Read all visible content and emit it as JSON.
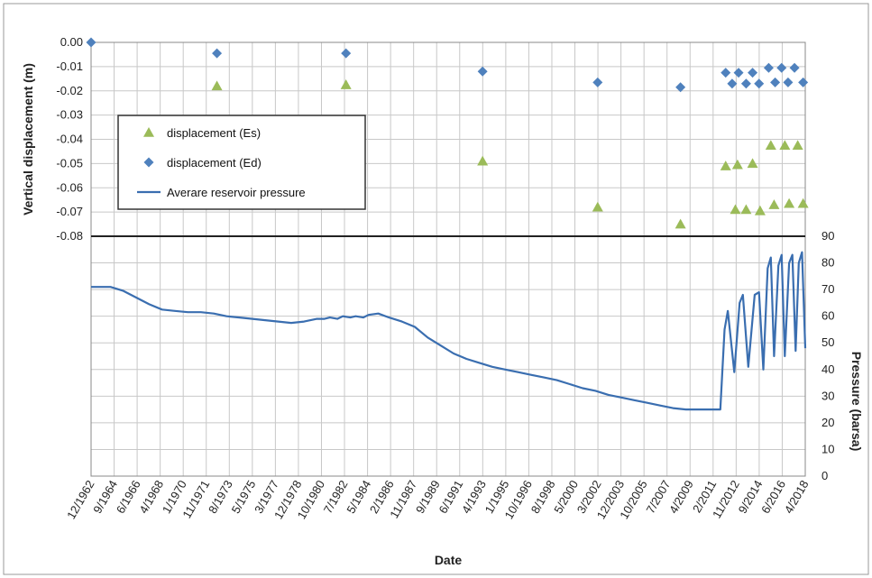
{
  "chart_data": {
    "type": "scatter+line",
    "xlabel": "Date",
    "top_panel": {
      "ylabel": "Vertical displacement (m)",
      "ylim": [
        -0.08,
        0.0
      ],
      "yticks": [
        "0.00",
        "-0.01",
        "-0.02",
        "-0.03",
        "-0.04",
        "-0.05",
        "-0.06",
        "-0.07",
        "-0.08"
      ],
      "series": [
        {
          "name": "displacement (Es)",
          "marker": "triangle",
          "color": "#9BBB59",
          "points": [
            {
              "x": "1972-09",
              "y": -0.018
            },
            {
              "x": "1982-09",
              "y": -0.0175
            },
            {
              "x": "1993-04",
              "y": -0.049
            },
            {
              "x": "2002-03",
              "y": -0.068
            },
            {
              "x": "2008-08",
              "y": -0.075
            },
            {
              "x": "2012-02",
              "y": -0.051
            },
            {
              "x": "2012-11",
              "y": -0.069
            },
            {
              "x": "2013-01",
              "y": -0.0505
            },
            {
              "x": "2013-09",
              "y": -0.069
            },
            {
              "x": "2014-03",
              "y": -0.05
            },
            {
              "x": "2014-10",
              "y": -0.0695
            },
            {
              "x": "2015-08",
              "y": -0.0425
            },
            {
              "x": "2015-11",
              "y": -0.067
            },
            {
              "x": "2016-09",
              "y": -0.0425
            },
            {
              "x": "2017-01",
              "y": -0.0665
            },
            {
              "x": "2017-09",
              "y": -0.0425
            },
            {
              "x": "2018-02",
              "y": -0.0665
            }
          ]
        },
        {
          "name": "displacement (Ed)",
          "marker": "diamond",
          "color": "#4F81BD",
          "points": [
            {
              "x": "1962-12",
              "y": 0.0
            },
            {
              "x": "1972-09",
              "y": -0.0045
            },
            {
              "x": "1982-09",
              "y": -0.0045
            },
            {
              "x": "1993-04",
              "y": -0.012
            },
            {
              "x": "2002-03",
              "y": -0.0165
            },
            {
              "x": "2008-08",
              "y": -0.0185
            },
            {
              "x": "2012-02",
              "y": -0.0125
            },
            {
              "x": "2012-08",
              "y": -0.017
            },
            {
              "x": "2013-02",
              "y": -0.0125
            },
            {
              "x": "2013-09",
              "y": -0.017
            },
            {
              "x": "2014-03",
              "y": -0.0125
            },
            {
              "x": "2014-09",
              "y": -0.017
            },
            {
              "x": "2015-06",
              "y": -0.0105
            },
            {
              "x": "2015-12",
              "y": -0.0165
            },
            {
              "x": "2016-06",
              "y": -0.0105
            },
            {
              "x": "2016-12",
              "y": -0.0165
            },
            {
              "x": "2017-06",
              "y": -0.0105
            },
            {
              "x": "2018-02",
              "y": -0.0165
            }
          ]
        }
      ]
    },
    "bottom_panel": {
      "ylabel": "Pressure (barsa)",
      "ylim": [
        0,
        90
      ],
      "yticks": [
        "0",
        "10",
        "20",
        "30",
        "40",
        "50",
        "60",
        "70",
        "80",
        "90"
      ],
      "series": [
        {
          "name": "Averare reservoir pressure",
          "color": "#3A6EB0",
          "points": [
            {
              "x": "1962-12",
              "y": 71.0
            },
            {
              "x": "1963-06",
              "y": 71.0
            },
            {
              "x": "1964-06",
              "y": 71.0
            },
            {
              "x": "1965-06",
              "y": 69.5
            },
            {
              "x": "1966-06",
              "y": 67.0
            },
            {
              "x": "1967-06",
              "y": 64.5
            },
            {
              "x": "1968-06",
              "y": 62.5
            },
            {
              "x": "1969-06",
              "y": 62.0
            },
            {
              "x": "1970-06",
              "y": 61.5
            },
            {
              "x": "1971-06",
              "y": 61.5
            },
            {
              "x": "1972-06",
              "y": 61.0
            },
            {
              "x": "1973-06",
              "y": 60.0
            },
            {
              "x": "1974-06",
              "y": 59.5
            },
            {
              "x": "1975-06",
              "y": 59.0
            },
            {
              "x": "1976-06",
              "y": 58.5
            },
            {
              "x": "1977-06",
              "y": 58.0
            },
            {
              "x": "1978-06",
              "y": 57.5
            },
            {
              "x": "1979-06",
              "y": 58.0
            },
            {
              "x": "1980-06",
              "y": 59.0
            },
            {
              "x": "1981-01",
              "y": 59.0
            },
            {
              "x": "1981-06",
              "y": 59.5
            },
            {
              "x": "1982-01",
              "y": 59.0
            },
            {
              "x": "1982-06",
              "y": 60.0
            },
            {
              "x": "1983-01",
              "y": 59.5
            },
            {
              "x": "1983-06",
              "y": 60.0
            },
            {
              "x": "1984-01",
              "y": 59.5
            },
            {
              "x": "1984-06",
              "y": 60.5
            },
            {
              "x": "1985-03",
              "y": 61.0
            },
            {
              "x": "1986-01",
              "y": 59.5
            },
            {
              "x": "1987-01",
              "y": 58.0
            },
            {
              "x": "1988-01",
              "y": 56.0
            },
            {
              "x": "1989-01",
              "y": 52.0
            },
            {
              "x": "1990-01",
              "y": 49.0
            },
            {
              "x": "1991-01",
              "y": 46.0
            },
            {
              "x": "1992-01",
              "y": 44.0
            },
            {
              "x": "1993-01",
              "y": 42.5
            },
            {
              "x": "1994-01",
              "y": 41.0
            },
            {
              "x": "1995-01",
              "y": 40.0
            },
            {
              "x": "1996-01",
              "y": 39.0
            },
            {
              "x": "1997-01",
              "y": 38.0
            },
            {
              "x": "1998-01",
              "y": 37.0
            },
            {
              "x": "1999-01",
              "y": 36.0
            },
            {
              "x": "2000-01",
              "y": 34.5
            },
            {
              "x": "2001-01",
              "y": 33.0
            },
            {
              "x": "2002-01",
              "y": 32.0
            },
            {
              "x": "2003-01",
              "y": 30.5
            },
            {
              "x": "2004-01",
              "y": 29.5
            },
            {
              "x": "2005-01",
              "y": 28.5
            },
            {
              "x": "2006-01",
              "y": 27.5
            },
            {
              "x": "2007-01",
              "y": 26.5
            },
            {
              "x": "2008-01",
              "y": 25.5
            },
            {
              "x": "2009-01",
              "y": 25.0
            },
            {
              "x": "2010-01",
              "y": 25.0
            },
            {
              "x": "2011-01",
              "y": 25.0
            },
            {
              "x": "2011-09",
              "y": 25.0
            },
            {
              "x": "2012-01",
              "y": 55.0
            },
            {
              "x": "2012-04",
              "y": 62.0
            },
            {
              "x": "2012-10",
              "y": 39.0
            },
            {
              "x": "2013-03",
              "y": 65.0
            },
            {
              "x": "2013-06",
              "y": 68.0
            },
            {
              "x": "2013-11",
              "y": 41.0
            },
            {
              "x": "2014-05",
              "y": 68.0
            },
            {
              "x": "2014-09",
              "y": 69.0
            },
            {
              "x": "2015-01",
              "y": 40.0
            },
            {
              "x": "2015-05",
              "y": 78.0
            },
            {
              "x": "2015-08",
              "y": 82.0
            },
            {
              "x": "2015-11",
              "y": 45.0
            },
            {
              "x": "2016-03",
              "y": 79.0
            },
            {
              "x": "2016-06",
              "y": 83.0
            },
            {
              "x": "2016-09",
              "y": 45.0
            },
            {
              "x": "2017-01",
              "y": 80.0
            },
            {
              "x": "2017-04",
              "y": 83.0
            },
            {
              "x": "2017-07",
              "y": 47.0
            },
            {
              "x": "2017-10",
              "y": 80.0
            },
            {
              "x": "2018-01",
              "y": 84.0
            },
            {
              "x": "2018-04",
              "y": 48.0
            }
          ]
        }
      ]
    },
    "x_tick_labels": [
      "12/1962",
      "9/1964",
      "6/1966",
      "4/1968",
      "1/1970",
      "11/1971",
      "8/1973",
      "5/1975",
      "3/1977",
      "12/1978",
      "10/1980",
      "7/1982",
      "5/1984",
      "2/1986",
      "11/1987",
      "9/1989",
      "6/1991",
      "4/1993",
      "1/1995",
      "10/1996",
      "8/1998",
      "5/2000",
      "3/2002",
      "12/2003",
      "10/2005",
      "7/2007",
      "4/2009",
      "2/2011",
      "11/2012",
      "9/2014",
      "6/2016",
      "4/2018"
    ],
    "legend": {
      "placement": "upper-left",
      "entries": [
        "displacement (Es)",
        "displacement (Ed)",
        "Averare reservoir pressure"
      ]
    },
    "grid": true
  }
}
